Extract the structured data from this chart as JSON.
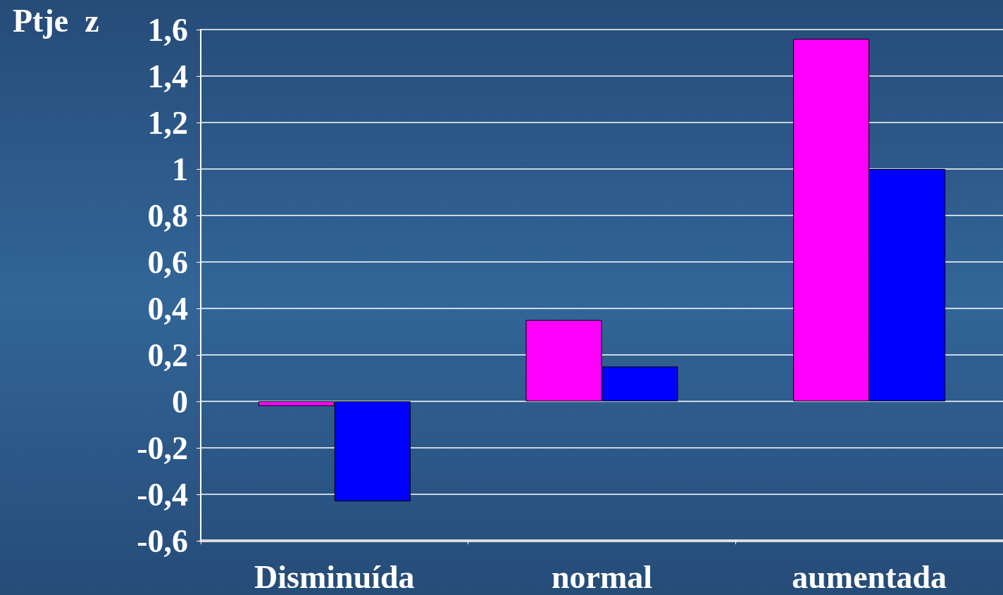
{
  "chart_data": {
    "type": "bar",
    "ylabel": "Ptje  z",
    "categories": [
      "Disminuída",
      "normal",
      "aumentada"
    ],
    "series": [
      {
        "color": "#ff00ff",
        "values": [
          -0.02,
          0.35,
          1.56
        ]
      },
      {
        "color": "#0000ff",
        "values": [
          -0.43,
          0.15,
          1.0
        ]
      }
    ],
    "ylim": [
      -0.6,
      1.6
    ],
    "yticks": [
      {
        "value": -0.6,
        "label": "-0,6"
      },
      {
        "value": -0.4,
        "label": "-0,4"
      },
      {
        "value": -0.2,
        "label": "-0,2"
      },
      0,
      {
        "value": 0.2,
        "label": "0,2"
      },
      {
        "value": 0.4,
        "label": "0,4"
      },
      {
        "value": 0.6,
        "label": "0,6"
      },
      {
        "value": 0.8,
        "label": "0,8"
      },
      1,
      {
        "value": 1.2,
        "label": "1,2"
      },
      {
        "value": 1.4,
        "label": "1,4"
      },
      {
        "value": 1.6,
        "label": "1,6"
      }
    ],
    "grid": "y"
  }
}
